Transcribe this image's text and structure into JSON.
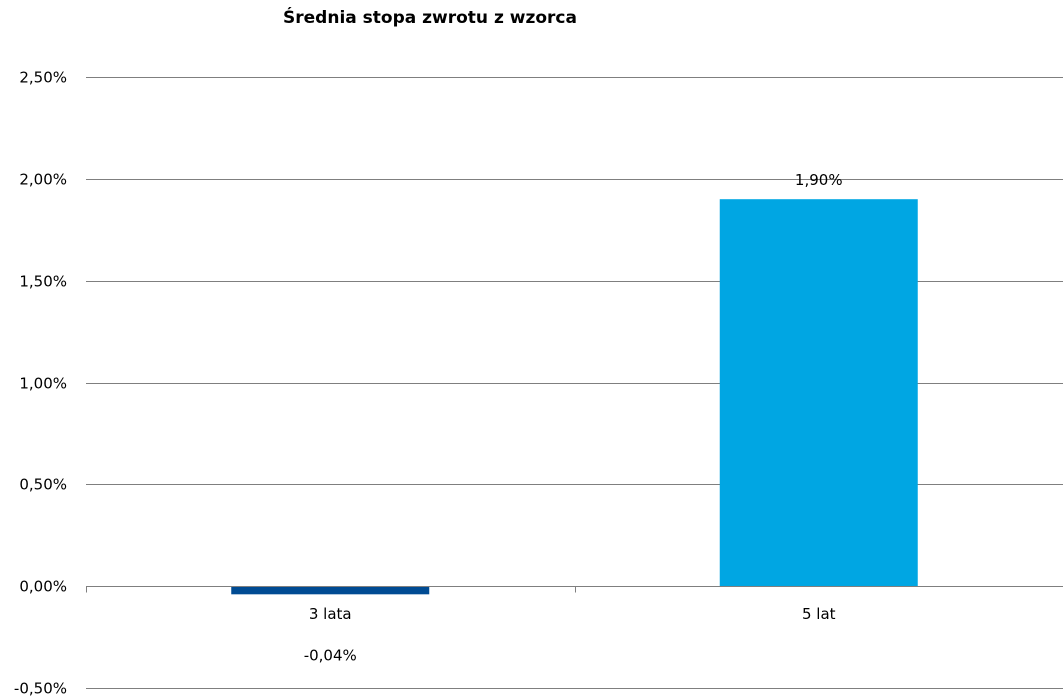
{
  "chart_data": {
    "type": "bar",
    "title": "Średnia stopa zwrotu z wzorca",
    "xlabel": "",
    "ylabel": "",
    "categories": [
      "3 lata",
      "5 lat"
    ],
    "values": [
      -0.04,
      1.9
    ],
    "value_labels": [
      "-0,04%",
      "1,90%"
    ],
    "bar_colors": [
      "#004b93",
      "#00a6e3"
    ],
    "ylim": [
      -0.5,
      2.5
    ],
    "yticks": [
      2.5,
      2.0,
      1.5,
      1.0,
      0.5,
      0.0,
      -0.5
    ],
    "ytick_labels": [
      "2,50%",
      "2,00%",
      "1,50%",
      "1,00%",
      "0,50%",
      "0,00%",
      "-0,50%"
    ],
    "grid": true,
    "legend": "none",
    "gridline_color": "#7f7f7f"
  }
}
